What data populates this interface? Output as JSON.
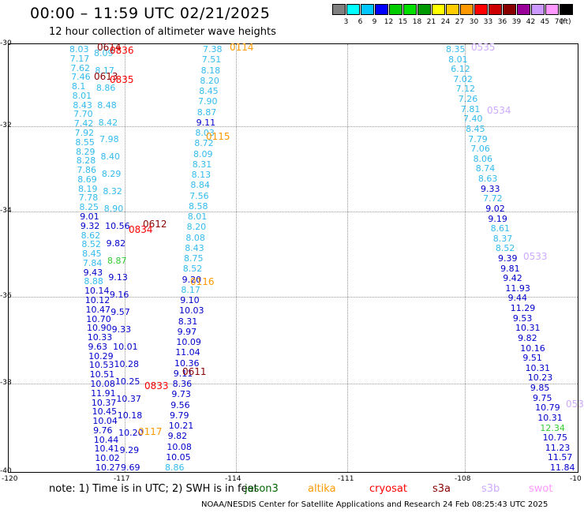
{
  "header": {
    "title": "00:00 – 11:59 UTC 02/21/2025",
    "subtitle": "12 hour collection of altimeter wave heights"
  },
  "legend": {
    "colors": [
      "#808080",
      "#00ffff",
      "#00c8ff",
      "#0000ff",
      "#00cc00",
      "#00e000",
      "#009900",
      "#ffff00",
      "#ffcc00",
      "#ff9900",
      "#ff0000",
      "#cc0000",
      "#880000",
      "#990099",
      "#cc99ff",
      "#ff99ff",
      "#000000"
    ],
    "labels": [
      "3",
      "6",
      "9",
      "12",
      "15",
      "18",
      "21",
      "24",
      "27",
      "30",
      "33",
      "36",
      "39",
      "42",
      "45",
      "70"
    ],
    "unit": "(ft)"
  },
  "axes": {
    "y_labels": [
      "-30",
      "-32",
      "-34",
      "-36",
      "-38",
      "-40"
    ],
    "x_labels": [
      "-120",
      "-117",
      "-114",
      "-111",
      "-108",
      "-10"
    ]
  },
  "passes": [
    {
      "label": "0114",
      "color": "#ff9900"
    },
    {
      "label": "0115",
      "color": "#ff9900"
    },
    {
      "label": "0116",
      "color": "#ff9900"
    },
    {
      "label": "0117",
      "color": "#ff9900"
    },
    {
      "label": "0535",
      "color": "#ccaaff"
    },
    {
      "label": "0534",
      "color": "#ccaaff"
    },
    {
      "label": "0533",
      "color": "#ccaaff"
    },
    {
      "label": "053",
      "color": "#ccaaff"
    },
    {
      "label": "0614",
      "color": "#880000"
    },
    {
      "label": "0613",
      "color": "#880000"
    },
    {
      "label": "0612",
      "color": "#880000"
    },
    {
      "label": "0611",
      "color": "#880000"
    },
    {
      "label": "0836",
      "color": "#ff0000"
    },
    {
      "label": "0835",
      "color": "#ff0000"
    },
    {
      "label": "0834",
      "color": "#ff0000"
    },
    {
      "label": "0833",
      "color": "#ff0000"
    }
  ],
  "track_0114": [
    "7.38",
    "7.51",
    "8.18",
    "8.20",
    "8.45",
    "7.90",
    "8.87",
    "9.11",
    "8.03",
    "8.72",
    "8.09",
    "8.31",
    "8.13",
    "8.84",
    "7.56",
    "8.58",
    "8.01",
    "8.20",
    "8.08",
    "8.43",
    "8.75",
    "8.52",
    "9.20",
    "8.17",
    "9.10",
    "10.03",
    "8.31",
    "9.97",
    "10.09",
    "11.04",
    "10.36",
    "9.11",
    "8.36",
    "9.73",
    "9.56",
    "9.79",
    "10.21",
    "9.82",
    "10.08",
    "10.05",
    "8.86"
  ],
  "track_0114_colors": [
    "#33bbee",
    "#33bbee",
    "#33bbee",
    "#33bbee",
    "#33bbee",
    "#33bbee",
    "#33bbee",
    "#0000cc",
    "#33bbee",
    "#33bbee",
    "#33bbee",
    "#33bbee",
    "#33bbee",
    "#33bbee",
    "#33bbee",
    "#33bbee",
    "#33bbee",
    "#33bbee",
    "#33bbee",
    "#33bbee",
    "#33bbee",
    "#33bbee",
    "#0000cc",
    "#33bbee",
    "#0000cc",
    "#0000cc",
    "#0000cc",
    "#0000cc",
    "#0000cc",
    "#0000cc",
    "#0000cc",
    "#0000cc",
    "#0000cc",
    "#0000cc",
    "#0000cc",
    "#0000cc",
    "#0000cc",
    "#0000cc",
    "#0000cc",
    "#0000cc",
    "#33bbee"
  ],
  "track_0535": [
    "8.35",
    "8.01",
    "6.12",
    "7.02",
    "7.12",
    "7.26",
    "7.81",
    "7.40",
    "8.45",
    "7.79",
    "7.06",
    "8.06",
    "8.74",
    "8.63",
    "9.33",
    "7.72",
    "9.02",
    "9.19",
    "8.61",
    "8.37",
    "8.52",
    "9.39",
    "9.81",
    "9.42",
    "11.93",
    "9.44",
    "11.29",
    "9.53",
    "10.31",
    "9.82",
    "10.16",
    "9.51",
    "10.31",
    "10.23",
    "9.85",
    "9.75",
    "10.79",
    "10.31",
    "12.34",
    "10.75",
    "11.23",
    "11.57",
    "11.84"
  ],
  "track_0535_colors": [
    "#33bbee",
    "#33bbee",
    "#33bbee",
    "#33bbee",
    "#33bbee",
    "#33bbee",
    "#33bbee",
    "#33bbee",
    "#33bbee",
    "#33bbee",
    "#33bbee",
    "#33bbee",
    "#33bbee",
    "#33bbee",
    "#0000cc",
    "#33bbee",
    "#0000cc",
    "#0000cc",
    "#33bbee",
    "#33bbee",
    "#33bbee",
    "#0000cc",
    "#0000cc",
    "#0000cc",
    "#0000cc",
    "#0000cc",
    "#0000cc",
    "#0000cc",
    "#0000cc",
    "#0000cc",
    "#0000cc",
    "#0000cc",
    "#0000cc",
    "#0000cc",
    "#0000cc",
    "#0000cc",
    "#0000cc",
    "#0000cc",
    "#33cc33",
    "#0000cc",
    "#0000cc",
    "#0000cc",
    "#0000cc"
  ],
  "track_left": [
    "8.03",
    "7.17",
    "7.62",
    "7.46",
    "8.1",
    "8.01",
    "8.43",
    "7.70",
    "7.42",
    "7.92",
    "8.55",
    "8.29",
    "8.28",
    "7.86",
    "8.69",
    "8.19",
    "7.78",
    "8.25",
    "9.01",
    "9.32",
    "8.62",
    "8.52",
    "8.45",
    "7.84",
    "9.43",
    "8.88",
    "10.14",
    "10.12",
    "10.47",
    "10.70",
    "10.90",
    "10.33",
    "9.63",
    "10.29",
    "10.53",
    "10.51",
    "10.08",
    "11.91",
    "10.37",
    "10.45",
    "10.04",
    "9.76",
    "10.44",
    "10.41",
    "10.02",
    "10.27"
  ],
  "track_left_colors": [
    "#33bbee",
    "#33bbee",
    "#33bbee",
    "#33bbee",
    "#33bbee",
    "#33bbee",
    "#33bbee",
    "#33bbee",
    "#33bbee",
    "#33bbee",
    "#33bbee",
    "#33bbee",
    "#33bbee",
    "#33bbee",
    "#33bbee",
    "#33bbee",
    "#33bbee",
    "#33bbee",
    "#0000cc",
    "#0000cc",
    "#33bbee",
    "#33bbee",
    "#33bbee",
    "#33bbee",
    "#0000cc",
    "#33bbee",
    "#0000cc",
    "#0000cc",
    "#0000cc",
    "#0000cc",
    "#0000cc",
    "#0000cc",
    "#0000cc",
    "#0000cc",
    "#0000cc",
    "#0000cc",
    "#0000cc",
    "#0000cc",
    "#0000cc",
    "#0000cc",
    "#0000cc",
    "#0000cc",
    "#0000cc",
    "#0000cc",
    "#0000cc",
    "#0000cc"
  ],
  "track_mid": [
    "8.09",
    "8.17",
    "8.86",
    "8.48",
    "8.42",
    "7.98",
    "8.40",
    "8.29",
    "8.32",
    "8.90",
    "10.56",
    "9.82",
    "8.87",
    "9.13",
    "9.16",
    "9.57",
    "9.33",
    "10.01",
    "10.28",
    "10.25",
    "10.37",
    "10.18",
    "10.20",
    "9.29",
    "9.69"
  ],
  "track_mid_colors": [
    "#33bbee",
    "#33bbee",
    "#33bbee",
    "#33bbee",
    "#33bbee",
    "#33bbee",
    "#33bbee",
    "#33bbee",
    "#33bbee",
    "#33bbee",
    "#0000cc",
    "#0000cc",
    "#33cc33",
    "#0000cc",
    "#0000cc",
    "#0000cc",
    "#0000cc",
    "#0000cc",
    "#0000cc",
    "#0000cc",
    "#0000cc",
    "#0000cc",
    "#0000cc",
    "#0000cc",
    "#0000cc"
  ],
  "note": "note:  1) Time is in UTC; 2) SWH is in feet",
  "satellites": [
    {
      "name": "jason3",
      "color": "#006600"
    },
    {
      "name": "altika",
      "color": "#ff9900"
    },
    {
      "name": "cryosat",
      "color": "#ff0000"
    },
    {
      "name": "s3a",
      "color": "#880000"
    },
    {
      "name": "s3b",
      "color": "#ccaaff"
    },
    {
      "name": "swot",
      "color": "#ff99ff"
    }
  ],
  "footer": "NOAA/NESDIS Center for Satellite Applications and Research     24 Feb 08:25:43 UTC 2025"
}
